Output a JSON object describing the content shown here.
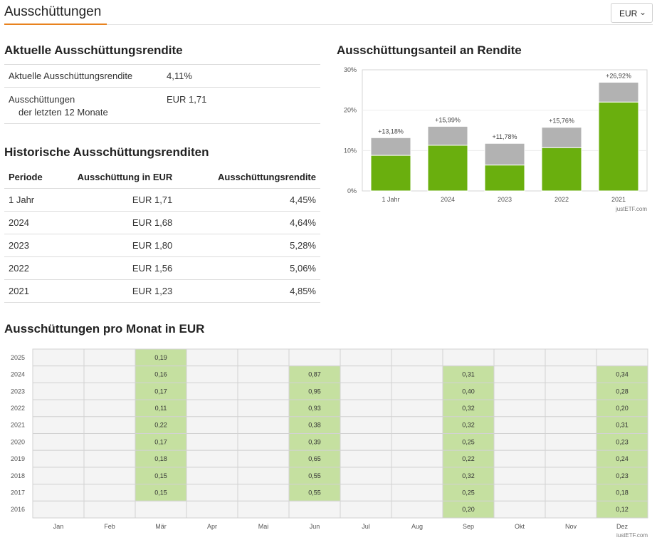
{
  "header": {
    "title": "Ausschüttungen",
    "currency": "EUR"
  },
  "current": {
    "title": "Aktuelle Ausschüttungsrendite",
    "rows": [
      {
        "label": "Aktuelle Ausschüttungsrendite",
        "label2": "",
        "value": "4,11%"
      },
      {
        "label": "Ausschüttungen",
        "label2": "der letzten 12 Monate",
        "value": "EUR 1,71"
      }
    ]
  },
  "historical": {
    "title": "Historische Ausschüttungsrenditen",
    "columns": [
      "Periode",
      "Ausschüttung in EUR",
      "Ausschüttungsrendite"
    ],
    "rows": [
      [
        "1 Jahr",
        "EUR 1,71",
        "4,45%"
      ],
      [
        "2024",
        "EUR 1,68",
        "4,64%"
      ],
      [
        "2023",
        "EUR 1,80",
        "5,28%"
      ],
      [
        "2022",
        "EUR 1,56",
        "5,06%"
      ],
      [
        "2021",
        "EUR 1,23",
        "4,85%"
      ]
    ]
  },
  "bar_section": {
    "title": "Ausschüttungsanteil an Rendite"
  },
  "monthly_section": {
    "title": "Ausschüttungen pro Monat in EUR"
  },
  "chart_data": [
    {
      "type": "bar",
      "title": "Ausschüttungsanteil an Rendite",
      "categories": [
        "1 Jahr",
        "2024",
        "2023",
        "2022",
        "2021"
      ],
      "series": [
        {
          "values": [
            8.8,
            11.3,
            6.4,
            10.7,
            22.0
          ]
        },
        {
          "values": [
            4.38,
            4.69,
            5.38,
            5.06,
            4.92
          ]
        }
      ],
      "total_labels": [
        "+13,18%",
        "+15,99%",
        "+11,78%",
        "+15,76%",
        "+26,92%"
      ],
      "totals": [
        13.18,
        15.99,
        11.78,
        15.76,
        26.92
      ],
      "yticks": [
        "0%",
        "10%",
        "20%",
        "30%"
      ],
      "ylim": [
        0,
        30
      ],
      "colors": {
        "distribution": "#6aaf0e",
        "rest": "#b2b2b2",
        "frame": "#d4d4d4"
      },
      "credit": "justETF.com"
    },
    {
      "type": "heatmap",
      "title": "Ausschüttungen pro Monat in EUR",
      "months": [
        "Jan",
        "Feb",
        "Mär",
        "Apr",
        "Mai",
        "Jun",
        "Jul",
        "Aug",
        "Sep",
        "Okt",
        "Nov",
        "Dez"
      ],
      "years": [
        "2025",
        "2024",
        "2023",
        "2022",
        "2021",
        "2020",
        "2019",
        "2018",
        "2017",
        "2016"
      ],
      "values": [
        [
          "",
          "",
          "0,19",
          "",
          "",
          "",
          "",
          "",
          "",
          "",
          "",
          ""
        ],
        [
          "",
          "",
          "0,16",
          "",
          "",
          "0,87",
          "",
          "",
          "0,31",
          "",
          "",
          "0,34"
        ],
        [
          "",
          "",
          "0,17",
          "",
          "",
          "0,95",
          "",
          "",
          "0,40",
          "",
          "",
          "0,28"
        ],
        [
          "",
          "",
          "0,11",
          "",
          "",
          "0,93",
          "",
          "",
          "0,32",
          "",
          "",
          "0,20"
        ],
        [
          "",
          "",
          "0,22",
          "",
          "",
          "0,38",
          "",
          "",
          "0,32",
          "",
          "",
          "0,31"
        ],
        [
          "",
          "",
          "0,17",
          "",
          "",
          "0,39",
          "",
          "",
          "0,25",
          "",
          "",
          "0,23"
        ],
        [
          "",
          "",
          "0,18",
          "",
          "",
          "0,65",
          "",
          "",
          "0,22",
          "",
          "",
          "0,24"
        ],
        [
          "",
          "",
          "0,15",
          "",
          "",
          "0,55",
          "",
          "",
          "0,32",
          "",
          "",
          "0,23"
        ],
        [
          "",
          "",
          "0,15",
          "",
          "",
          "0,55",
          "",
          "",
          "0,25",
          "",
          "",
          "0,18"
        ],
        [
          "",
          "",
          "",
          "",
          "",
          "",
          "",
          "",
          "0,20",
          "",
          "",
          "0,12"
        ]
      ],
      "colors": {
        "filled": "#c5e0a0",
        "empty": "#f4f4f4",
        "grid": "#d2d2d2"
      },
      "credit": "justETF.com"
    }
  ]
}
